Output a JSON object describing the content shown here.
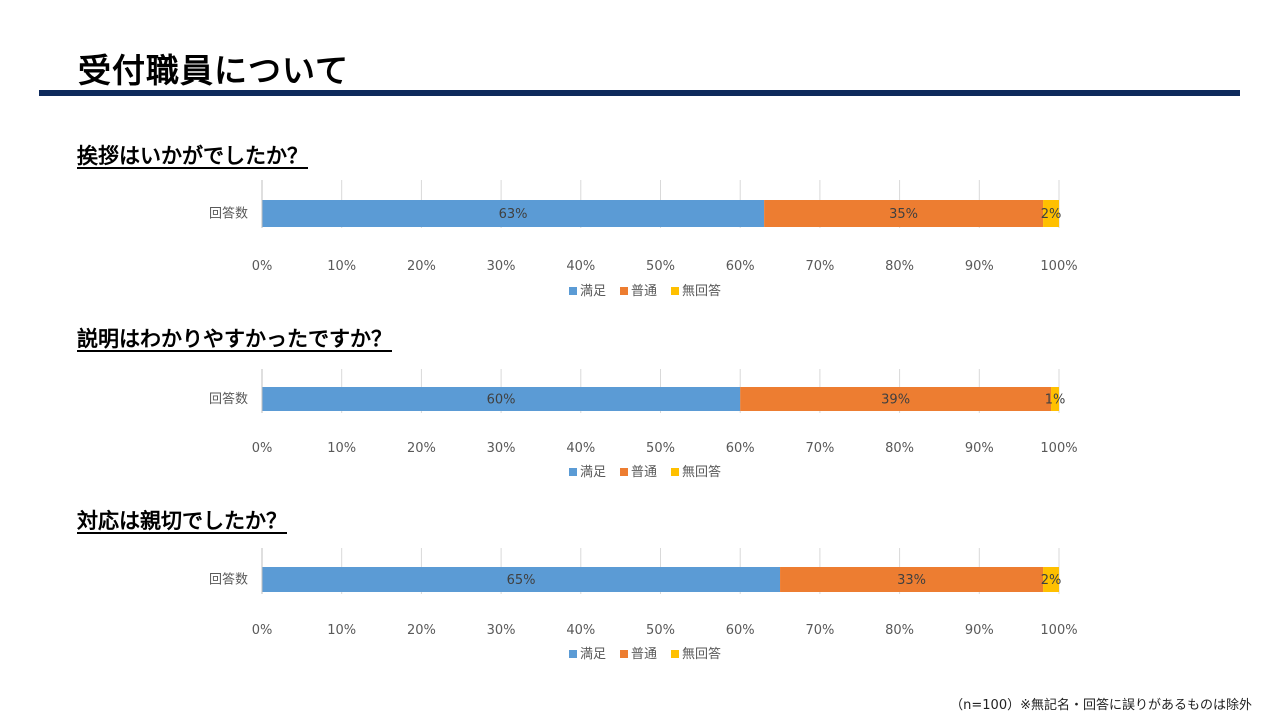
{
  "title": "受付職員について",
  "footnote": "（n=100）※無記名・回答に誤りがあるものは除外",
  "colors": {
    "satisfied": "#5b9bd5",
    "normal": "#ed7d31",
    "no_answer": "#ffc000",
    "title_rule": "#0e2a5c"
  },
  "chart_data": [
    {
      "type": "bar",
      "orientation": "horizontal",
      "stacked": true,
      "title": "挨拶はいかがでしたか？",
      "categories": [
        "回答数"
      ],
      "series": [
        {
          "name": "満足",
          "values": [
            63
          ],
          "label": "63%"
        },
        {
          "name": "普通",
          "values": [
            35
          ],
          "label": "35%"
        },
        {
          "name": "無回答",
          "values": [
            2
          ],
          "label": "2%"
        }
      ],
      "xlim": [
        0,
        100
      ],
      "xticks": [
        "0%",
        "10%",
        "20%",
        "30%",
        "40%",
        "50%",
        "60%",
        "70%",
        "80%",
        "90%",
        "100%"
      ],
      "grid": true,
      "legend": "bottom"
    },
    {
      "type": "bar",
      "orientation": "horizontal",
      "stacked": true,
      "title": "説明はわかりやすかったですか？",
      "categories": [
        "回答数"
      ],
      "series": [
        {
          "name": "満足",
          "values": [
            60
          ],
          "label": "60%"
        },
        {
          "name": "普通",
          "values": [
            39
          ],
          "label": "39%"
        },
        {
          "name": "無回答",
          "values": [
            1
          ],
          "label": "1%"
        }
      ],
      "xlim": [
        0,
        100
      ],
      "xticks": [
        "0%",
        "10%",
        "20%",
        "30%",
        "40%",
        "50%",
        "60%",
        "70%",
        "80%",
        "90%",
        "100%"
      ],
      "grid": true,
      "legend": "bottom"
    },
    {
      "type": "bar",
      "orientation": "horizontal",
      "stacked": true,
      "title": "対応は親切でしたか？",
      "categories": [
        "回答数"
      ],
      "series": [
        {
          "name": "満足",
          "values": [
            65
          ],
          "label": "65%"
        },
        {
          "name": "普通",
          "values": [
            33
          ],
          "label": "33%"
        },
        {
          "name": "無回答",
          "values": [
            2
          ],
          "label": "2%"
        }
      ],
      "xlim": [
        0,
        100
      ],
      "xticks": [
        "0%",
        "10%",
        "20%",
        "30%",
        "40%",
        "50%",
        "60%",
        "70%",
        "80%",
        "90%",
        "100%"
      ],
      "grid": true,
      "legend": "bottom"
    }
  ]
}
